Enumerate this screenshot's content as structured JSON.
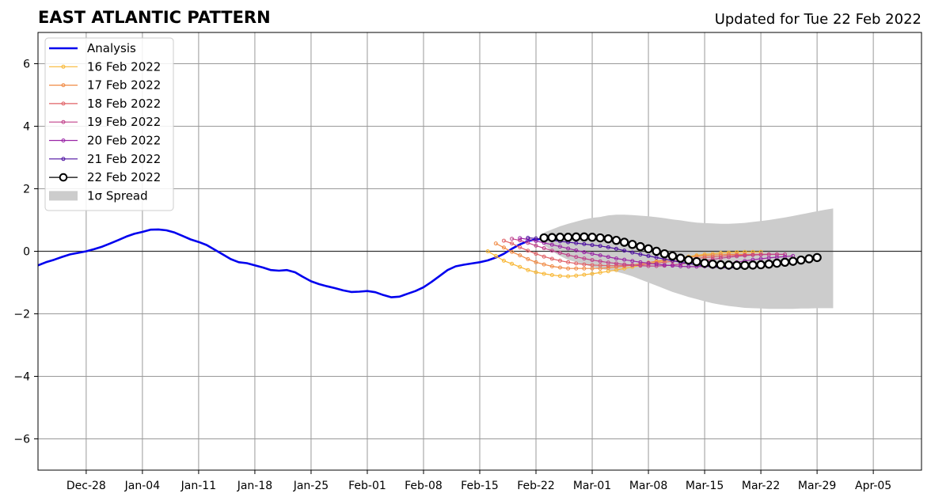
{
  "header": {
    "title": "EAST ATLANTIC PATTERN",
    "updated": "Updated for Tue 22 Feb 2022"
  },
  "chart_data": {
    "type": "line",
    "title": "EAST ATLANTIC PATTERN",
    "subtitle": "Updated for Tue 22 Feb 2022",
    "xlabel": "",
    "ylabel": "",
    "x_axis": {
      "type": "date",
      "range": [
        "2021-12-22",
        "2022-04-11"
      ],
      "ticks": [
        "2021-12-28",
        "2022-01-04",
        "2022-01-11",
        "2022-01-18",
        "2022-01-25",
        "2022-02-01",
        "2022-02-08",
        "2022-02-15",
        "2022-02-22",
        "2022-03-01",
        "2022-03-08",
        "2022-03-15",
        "2022-03-22",
        "2022-03-29",
        "2022-04-05"
      ],
      "tick_labels": [
        "Dec-28",
        "Jan-04",
        "Jan-11",
        "Jan-18",
        "Jan-25",
        "Feb-01",
        "Feb-08",
        "Feb-15",
        "Feb-22",
        "Mar-01",
        "Mar-08",
        "Mar-15",
        "Mar-22",
        "Mar-29",
        "Apr-05"
      ]
    },
    "ylim": [
      -7,
      7
    ],
    "y_ticks": [
      -6,
      -4,
      -2,
      0,
      2,
      4,
      6
    ],
    "y_tick_labels": [
      "−6",
      "−4",
      "−2",
      "0",
      "2",
      "4",
      "6"
    ],
    "grid": true,
    "legend_position": "top-left",
    "colors": {
      "analysis": "#0000ee",
      "spread": "#cccccc",
      "grid": "#999999",
      "zero_line": "#333333"
    },
    "analysis": {
      "name": "Analysis",
      "color": "#0000ee",
      "points": [
        [
          "2021-12-22",
          -0.45
        ],
        [
          "2021-12-23",
          -0.35
        ],
        [
          "2021-12-24",
          -0.27
        ],
        [
          "2021-12-25",
          -0.18
        ],
        [
          "2021-12-26",
          -0.1
        ],
        [
          "2021-12-27",
          -0.05
        ],
        [
          "2021-12-28",
          0.0
        ],
        [
          "2021-12-29",
          0.07
        ],
        [
          "2021-12-30",
          0.15
        ],
        [
          "2021-12-31",
          0.25
        ],
        [
          "2022-01-01",
          0.36
        ],
        [
          "2022-01-02",
          0.47
        ],
        [
          "2022-01-03",
          0.56
        ],
        [
          "2022-01-04",
          0.62
        ],
        [
          "2022-01-05",
          0.69
        ],
        [
          "2022-01-06",
          0.7
        ],
        [
          "2022-01-07",
          0.67
        ],
        [
          "2022-01-08",
          0.6
        ],
        [
          "2022-01-09",
          0.49
        ],
        [
          "2022-01-10",
          0.38
        ],
        [
          "2022-01-11",
          0.3
        ],
        [
          "2022-01-12",
          0.2
        ],
        [
          "2022-01-13",
          0.05
        ],
        [
          "2022-01-14",
          -0.1
        ],
        [
          "2022-01-15",
          -0.25
        ],
        [
          "2022-01-16",
          -0.35
        ],
        [
          "2022-01-17",
          -0.38
        ],
        [
          "2022-01-18",
          -0.45
        ],
        [
          "2022-01-19",
          -0.52
        ],
        [
          "2022-01-20",
          -0.6
        ],
        [
          "2022-01-21",
          -0.62
        ],
        [
          "2022-01-22",
          -0.6
        ],
        [
          "2022-01-23",
          -0.67
        ],
        [
          "2022-01-24",
          -0.82
        ],
        [
          "2022-01-25",
          -0.96
        ],
        [
          "2022-01-26",
          -1.05
        ],
        [
          "2022-01-27",
          -1.12
        ],
        [
          "2022-01-28",
          -1.18
        ],
        [
          "2022-01-29",
          -1.25
        ],
        [
          "2022-01-30",
          -1.3
        ],
        [
          "2022-01-31",
          -1.29
        ],
        [
          "2022-02-01",
          -1.27
        ],
        [
          "2022-02-02",
          -1.31
        ],
        [
          "2022-02-03",
          -1.4
        ],
        [
          "2022-02-04",
          -1.47
        ],
        [
          "2022-02-05",
          -1.45
        ],
        [
          "2022-02-06",
          -1.36
        ],
        [
          "2022-02-07",
          -1.27
        ],
        [
          "2022-02-08",
          -1.15
        ],
        [
          "2022-02-09",
          -0.98
        ],
        [
          "2022-02-10",
          -0.79
        ],
        [
          "2022-02-11",
          -0.6
        ],
        [
          "2022-02-12",
          -0.48
        ],
        [
          "2022-02-13",
          -0.43
        ],
        [
          "2022-02-14",
          -0.39
        ],
        [
          "2022-02-15",
          -0.35
        ],
        [
          "2022-02-16",
          -0.29
        ],
        [
          "2022-02-17",
          -0.2
        ],
        [
          "2022-02-18",
          -0.08
        ],
        [
          "2022-02-19",
          0.08
        ],
        [
          "2022-02-20",
          0.22
        ],
        [
          "2022-02-21",
          0.33
        ],
        [
          "2022-02-22",
          0.38
        ],
        [
          "2022-02-23",
          0.4
        ],
        [
          "2022-02-24",
          0.4
        ],
        [
          "2022-02-25",
          0.38
        ]
      ]
    },
    "forecasts": [
      {
        "name": "16 Feb 2022",
        "color": "#f8b735",
        "start": "2022-02-16",
        "values": [
          0.0,
          -0.15,
          -0.3,
          -0.4,
          -0.5,
          -0.6,
          -0.67,
          -0.72,
          -0.76,
          -0.79,
          -0.8,
          -0.78,
          -0.75,
          -0.72,
          -0.68,
          -0.64,
          -0.6,
          -0.55,
          -0.5,
          -0.45,
          -0.4,
          -0.35,
          -0.3,
          -0.25,
          -0.2,
          -0.17,
          -0.13,
          -0.1,
          -0.08,
          -0.05,
          -0.04,
          -0.03,
          -0.02,
          -0.02,
          -0.02
        ]
      },
      {
        "name": "17 Feb 2022",
        "color": "#f08a44",
        "start": "2022-02-17",
        "values": [
          0.25,
          0.12,
          -0.02,
          -0.13,
          -0.25,
          -0.35,
          -0.42,
          -0.48,
          -0.52,
          -0.55,
          -0.55,
          -0.55,
          -0.55,
          -0.55,
          -0.53,
          -0.5,
          -0.47,
          -0.44,
          -0.4,
          -0.36,
          -0.32,
          -0.28,
          -0.25,
          -0.22,
          -0.19,
          -0.16,
          -0.14,
          -0.12,
          -0.11,
          -0.1,
          -0.1,
          -0.1,
          -0.1,
          -0.1,
          -0.1
        ]
      },
      {
        "name": "18 Feb 2022",
        "color": "#e06266",
        "start": "2022-02-18",
        "values": [
          0.34,
          0.25,
          0.13,
          0.02,
          -0.08,
          -0.17,
          -0.24,
          -0.3,
          -0.35,
          -0.39,
          -0.42,
          -0.44,
          -0.45,
          -0.46,
          -0.46,
          -0.46,
          -0.45,
          -0.43,
          -0.41,
          -0.38,
          -0.35,
          -0.32,
          -0.29,
          -0.26,
          -0.23,
          -0.2,
          -0.18,
          -0.16,
          -0.14,
          -0.13,
          -0.12,
          -0.11,
          -0.1,
          -0.1,
          -0.1
        ]
      },
      {
        "name": "19 Feb 2022",
        "color": "#c0408a",
        "start": "2022-02-19",
        "values": [
          0.4,
          0.35,
          0.27,
          0.18,
          0.1,
          0.02,
          -0.05,
          -0.12,
          -0.18,
          -0.23,
          -0.28,
          -0.32,
          -0.36,
          -0.39,
          -0.42,
          -0.44,
          -0.46,
          -0.47,
          -0.47,
          -0.46,
          -0.44,
          -0.41,
          -0.37,
          -0.33,
          -0.3,
          -0.26,
          -0.22,
          -0.19,
          -0.16,
          -0.14,
          -0.12,
          -0.11,
          -0.1,
          -0.1,
          -0.1
        ]
      },
      {
        "name": "20 Feb 2022",
        "color": "#9a25a6",
        "start": "2022-02-20",
        "values": [
          0.42,
          0.38,
          0.33,
          0.27,
          0.21,
          0.15,
          0.09,
          0.03,
          -0.03,
          -0.08,
          -0.13,
          -0.18,
          -0.23,
          -0.27,
          -0.31,
          -0.35,
          -0.38,
          -0.41,
          -0.44,
          -0.46,
          -0.48,
          -0.49,
          -0.49,
          -0.48,
          -0.46,
          -0.43,
          -0.39,
          -0.35,
          -0.31,
          -0.27,
          -0.24,
          -0.21,
          -0.19,
          -0.17,
          -0.15
        ]
      },
      {
        "name": "21 Feb 2022",
        "color": "#4c0fa0",
        "start": "2022-02-21",
        "values": [
          0.43,
          0.41,
          0.38,
          0.35,
          0.32,
          0.29,
          0.26,
          0.23,
          0.2,
          0.17,
          0.13,
          0.08,
          0.02,
          -0.04,
          -0.1,
          -0.15,
          -0.2,
          -0.25,
          -0.3,
          -0.35,
          -0.39,
          -0.43,
          -0.47,
          -0.5,
          -0.52,
          -0.53,
          -0.53,
          -0.52,
          -0.5,
          -0.48,
          -0.45,
          -0.42,
          -0.39,
          -0.35,
          -0.32
        ]
      },
      {
        "name": "22 Feb 2022",
        "color": "#000000",
        "start": "2022-02-23",
        "values": [
          0.43,
          0.44,
          0.45,
          0.45,
          0.46,
          0.46,
          0.45,
          0.43,
          0.4,
          0.35,
          0.29,
          0.22,
          0.15,
          0.08,
          0.0,
          -0.08,
          -0.15,
          -0.22,
          -0.28,
          -0.33,
          -0.38,
          -0.41,
          -0.43,
          -0.44,
          -0.45,
          -0.45,
          -0.44,
          -0.43,
          -0.41,
          -0.38,
          -0.35,
          -0.32,
          -0.28,
          -0.24,
          -0.2
        ]
      }
    ],
    "spread": {
      "name": "1σ Spread",
      "color": "#cccccc",
      "start": "2022-02-23",
      "upper": [
        0.6,
        0.7,
        0.8,
        0.88,
        0.95,
        1.02,
        1.07,
        1.1,
        1.15,
        1.17,
        1.17,
        1.16,
        1.14,
        1.12,
        1.09,
        1.06,
        1.02,
        0.99,
        0.95,
        0.92,
        0.9,
        0.89,
        0.88,
        0.88,
        0.89,
        0.91,
        0.94,
        0.97,
        1.0,
        1.04,
        1.08,
        1.13,
        1.18,
        1.23,
        1.28,
        1.33,
        1.37
      ],
      "lower": [
        0.2,
        0.0,
        -0.15,
        -0.27,
        -0.35,
        -0.42,
        -0.5,
        -0.56,
        -0.6,
        -0.65,
        -0.72,
        -0.8,
        -0.9,
        -1.0,
        -1.1,
        -1.2,
        -1.3,
        -1.38,
        -1.46,
        -1.53,
        -1.6,
        -1.66,
        -1.71,
        -1.75,
        -1.78,
        -1.81,
        -1.82,
        -1.83,
        -1.84,
        -1.84,
        -1.84,
        -1.84,
        -1.83,
        -1.83,
        -1.82,
        -1.82,
        -1.82
      ]
    },
    "legend": [
      {
        "label": "Analysis",
        "style": "line",
        "color": "#0000ee"
      },
      {
        "label": "16 Feb 2022",
        "style": "marker-line",
        "color": "#f8b735"
      },
      {
        "label": "17 Feb 2022",
        "style": "marker-line",
        "color": "#f08a44"
      },
      {
        "label": "18 Feb 2022",
        "style": "marker-line",
        "color": "#e06266"
      },
      {
        "label": "19 Feb 2022",
        "style": "marker-line",
        "color": "#c0408a"
      },
      {
        "label": "20 Feb 2022",
        "style": "marker-line",
        "color": "#9a25a6"
      },
      {
        "label": "21 Feb 2022",
        "style": "marker-line",
        "color": "#4c0fa0"
      },
      {
        "label": "22 Feb 2022",
        "style": "open-circle",
        "color": "#000000"
      },
      {
        "label": "1σ Spread",
        "style": "patch",
        "color": "#cccccc"
      }
    ]
  }
}
